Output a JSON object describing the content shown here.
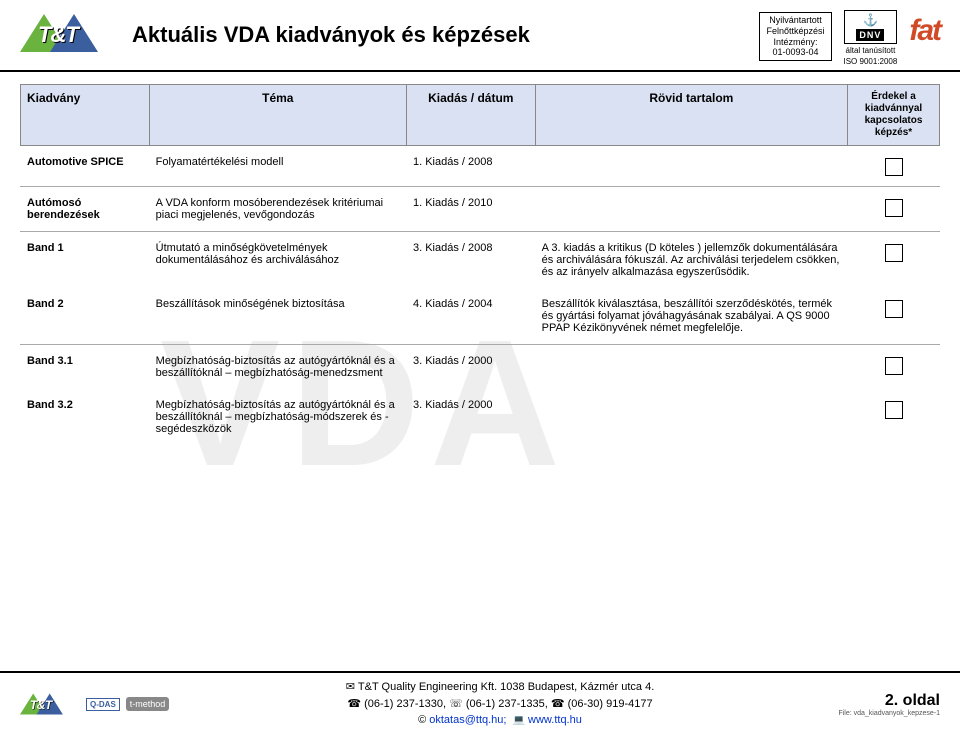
{
  "header": {
    "title": "Aktuális VDA kiadványok és képzések",
    "reg_l1": "Nyilvántartott",
    "reg_l2": "Felnőttképzési",
    "reg_l3": "Intézmény:",
    "reg_l4": "01-0093-04",
    "dnv_label": "DNV",
    "dnv_sub1": "által tanúsított",
    "dnv_sub2": "ISO 9001:2008",
    "fat_label": "fat",
    "tt_text": "T&T"
  },
  "columns": {
    "c1": "Kiadvány",
    "c2": "Téma",
    "c3": "Kiadás / dátum",
    "c4": "Rövid tartalom",
    "c5": "Érdekel a kiadvánnyal kapcsolatos képzés*"
  },
  "rows": [
    {
      "c1": "Automotive SPICE",
      "c2": "Folyamatértékelési modell",
      "c3": "1. Kiadás / 2008",
      "c4": ""
    },
    {
      "c1": "Autómosó berendezések",
      "c2": "A VDA konform mosóberendezések kritériumai piaci megjelenés, vevőgondozás",
      "c3": "1. Kiadás / 2010",
      "c4": ""
    },
    {
      "c1": "Band 1",
      "c2": "Útmutató a minőségkövetelmények dokumentálásához és archiválásához",
      "c3": "3. Kiadás  / 2008",
      "c4": "A 3. kiadás a kritikus (D köteles ) jellemzők dokumentálására és archiválására fókuszál. Az archiválási terjedelem csökken, és az irányelv alkalmazása egyszerűsödik."
    },
    {
      "c1": "Band 2",
      "c2": "Beszállítások minőségének biztosítása",
      "c3": "4. Kiadás / 2004",
      "c4": "Beszállítók kiválasztása, beszállítói szerződéskötés, termék és gyártási folyamat jóváhagyásának szabályai. A QS 9000 PPAP Kézikönyvének német megfelelője."
    },
    {
      "c1": "Band 3.1",
      "c2": "Megbízhatóság-biztosítás az autógyártóknál és a beszállítóknál – megbízhatóság-menedzsment",
      "c3": "3. Kiadás / 2000",
      "c4": ""
    },
    {
      "c1": "Band 3.2",
      "c2": "Megbízhatóság-biztosítás az autógyártóknál és a beszállítóknál – megbízhatóság-módszerek és -segédeszközök",
      "c3": "3. Kiadás / 2000",
      "c4": ""
    }
  ],
  "footer": {
    "qdas": "Q-DAS",
    "tmethod": "t-method",
    "line1": "T&T Quality Engineering Kft. 1038 Budapest, Kázmér utca 4.",
    "tel": "(06-1) 237-1330,",
    "fax": "(06-1) 237-1335,",
    "mob": "(06-30) 919-4177",
    "email": "oktatas@ttq.hu;",
    "web": "www.ttq.hu",
    "page": "2. oldal",
    "file": "File: vda_kiadvanyok_kepzese-1"
  },
  "watermark": "VDA",
  "colors": {
    "header_bg": "#d9e1f2",
    "green": "#6bb33f",
    "blue": "#3b5f9e",
    "fat": "#d04a28"
  }
}
